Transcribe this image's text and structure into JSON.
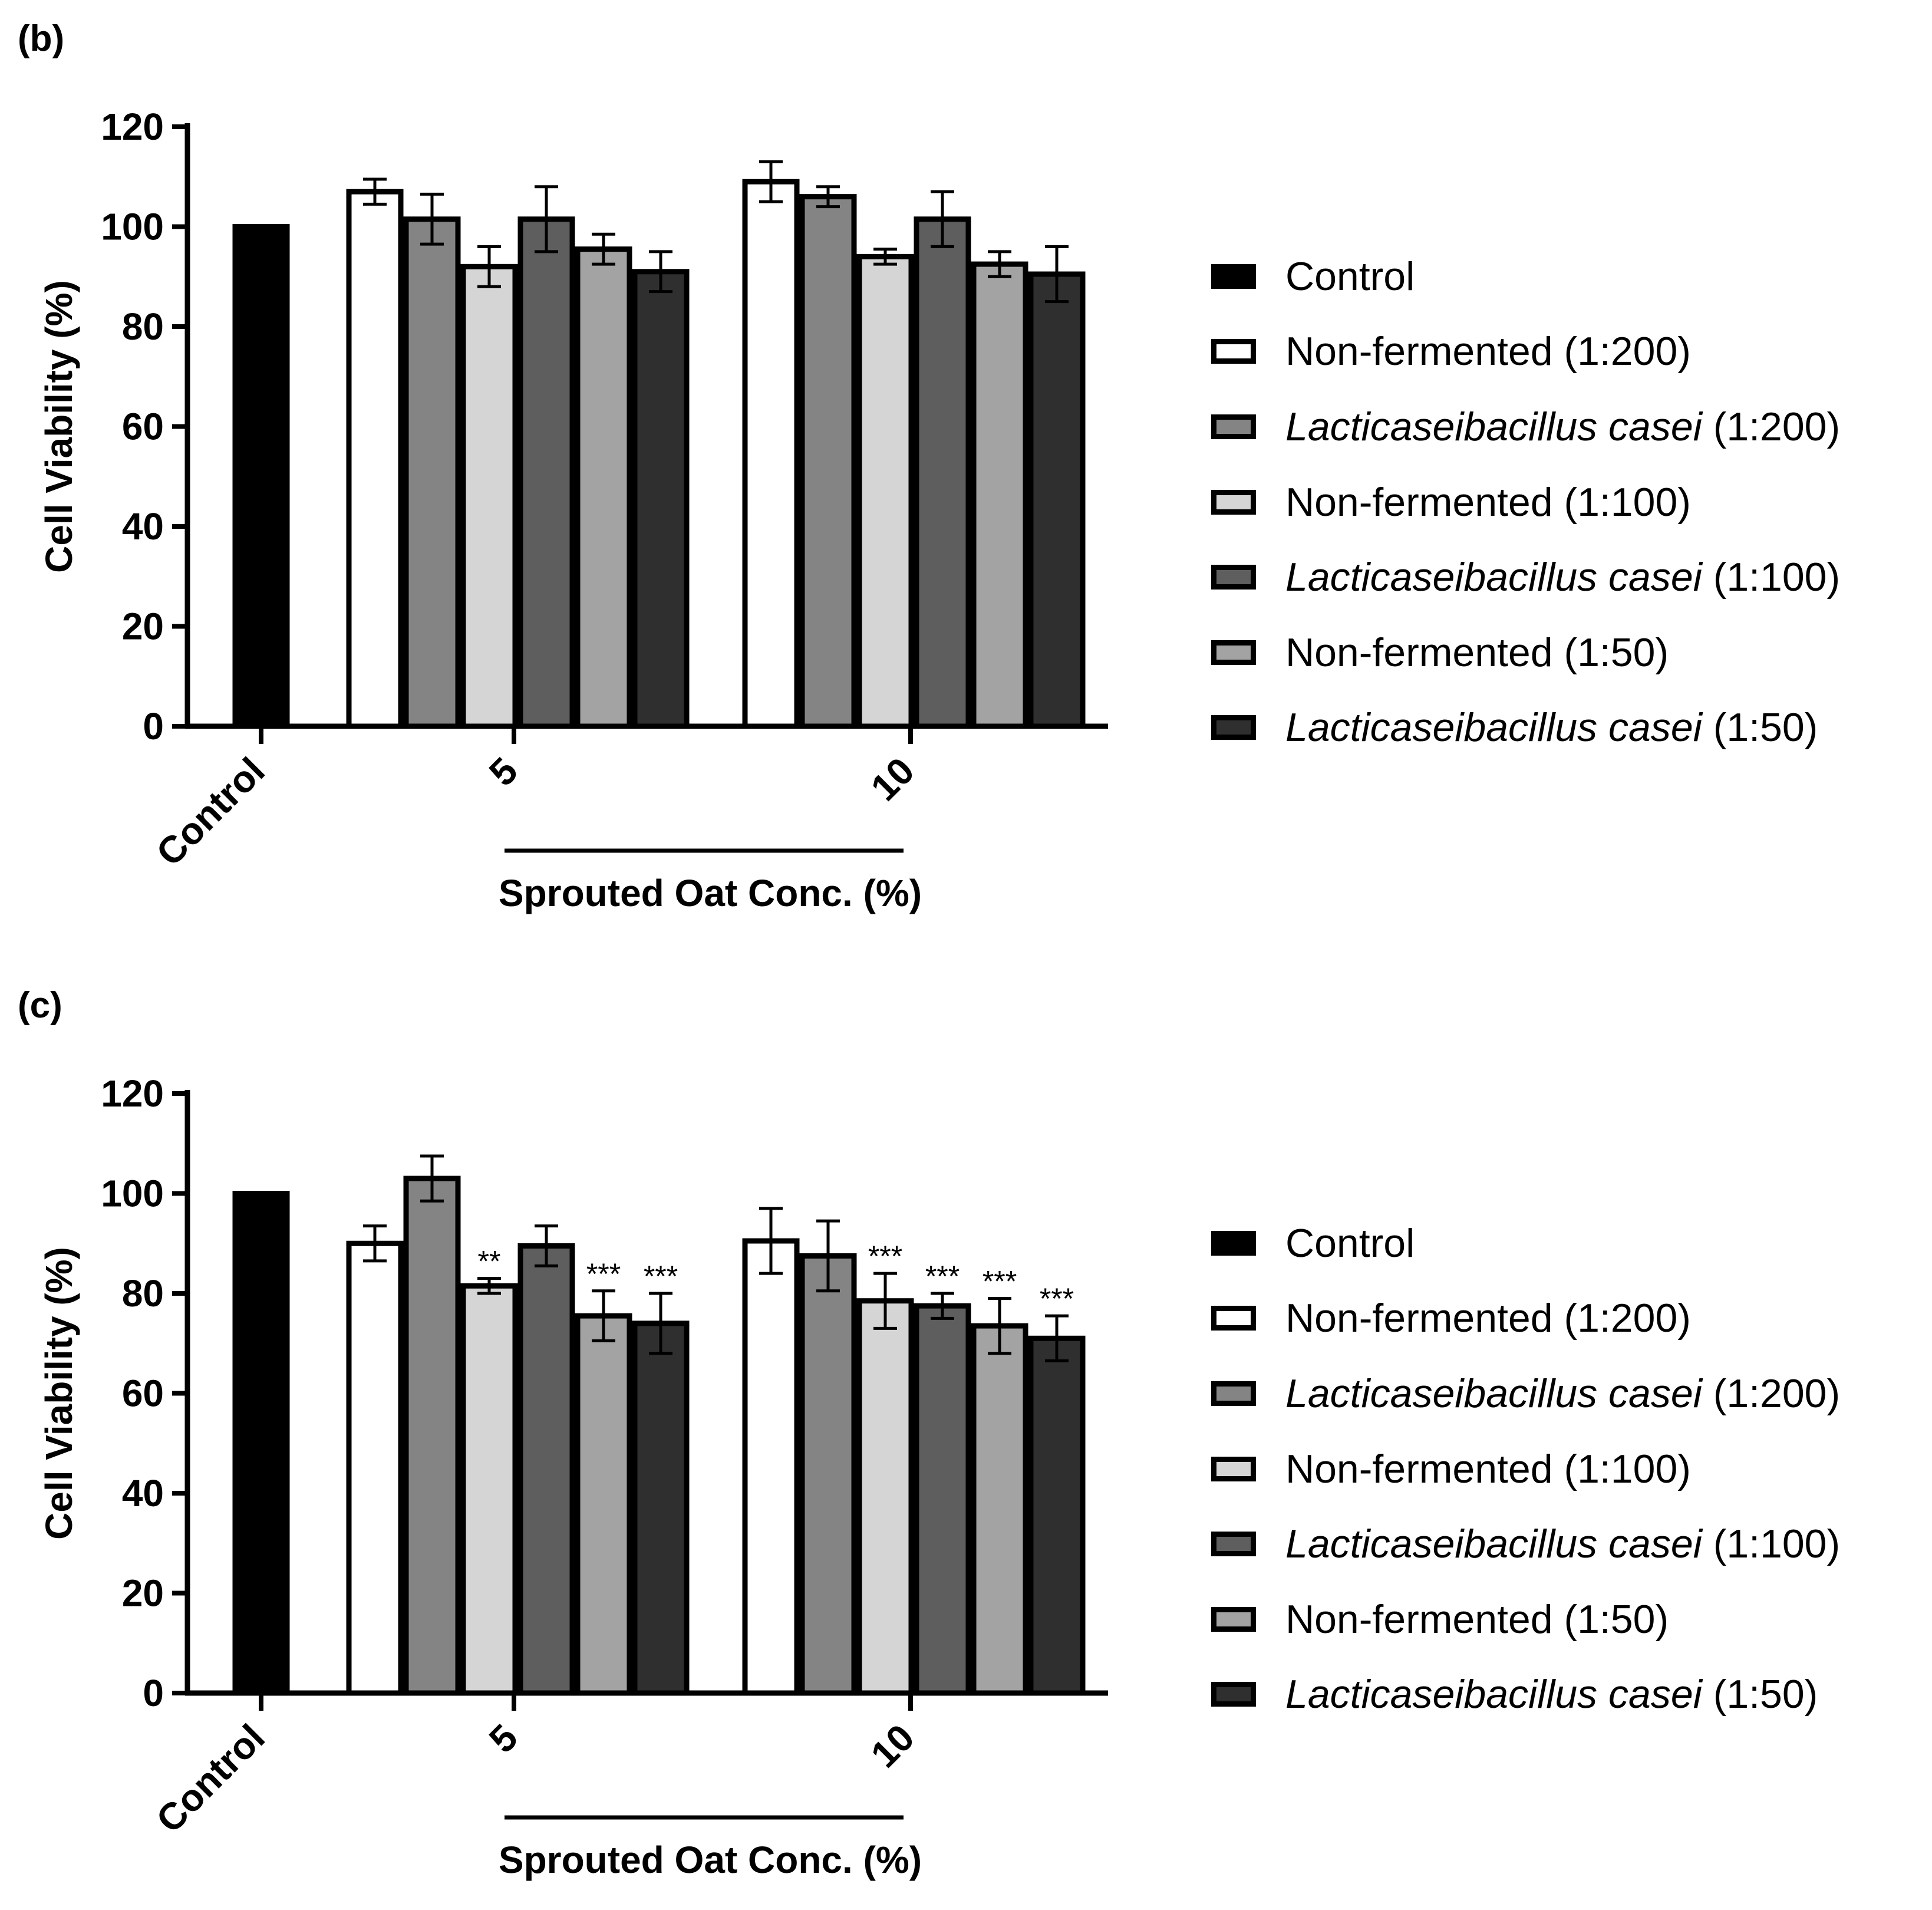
{
  "chart_data": [
    {
      "panel_label": "(b)",
      "type": "bar",
      "ylabel": "Cell Viability (%)",
      "xlabel": "Sprouted Oat Conc. (%)",
      "ylim": [
        0,
        120
      ],
      "yticks": [
        "0",
        "20",
        "40",
        "60",
        "80",
        "100",
        "120"
      ],
      "groups": [
        "Control",
        "5",
        "10"
      ],
      "control": {
        "name": "Control",
        "value": 100
      },
      "series": [
        {
          "name": "Non-fermented (1:200)",
          "values": [
            107,
            109
          ],
          "errors": [
            2.5,
            4.0
          ],
          "sig": [
            "",
            ""
          ]
        },
        {
          "name": "Lacticaseibacillus casei (1:200)",
          "values": [
            101.5,
            106
          ],
          "errors": [
            5.0,
            2.0
          ],
          "sig": [
            "",
            ""
          ]
        },
        {
          "name": "Non-fermented (1:100)",
          "values": [
            92,
            94
          ],
          "errors": [
            4.0,
            1.5
          ],
          "sig": [
            "",
            ""
          ]
        },
        {
          "name": "Lacticaseibacillus casei (1:100)",
          "values": [
            101.5,
            101.5
          ],
          "errors": [
            6.5,
            5.5
          ],
          "sig": [
            "",
            ""
          ]
        },
        {
          "name": "Non-fermented (1:50)",
          "values": [
            95.5,
            92.5
          ],
          "errors": [
            3.0,
            2.5
          ],
          "sig": [
            "",
            ""
          ]
        },
        {
          "name": "Lacticaseibacillus casei (1:50)",
          "values": [
            91,
            90.5
          ],
          "errors": [
            4.0,
            5.5
          ],
          "sig": [
            "",
            ""
          ]
        }
      ]
    },
    {
      "panel_label": "(c)",
      "type": "bar",
      "ylabel": "Cell Viability (%)",
      "xlabel": "Sprouted Oat Conc. (%)",
      "ylim": [
        0,
        120
      ],
      "yticks": [
        "0",
        "20",
        "40",
        "60",
        "80",
        "100",
        "120"
      ],
      "groups": [
        "Control",
        "5",
        "10"
      ],
      "control": {
        "name": "Control",
        "value": 100
      },
      "series": [
        {
          "name": "Non-fermented (1:200)",
          "values": [
            90,
            90.5
          ],
          "errors": [
            3.5,
            6.5
          ],
          "sig": [
            "",
            ""
          ]
        },
        {
          "name": "Lacticaseibacillus casei (1:200)",
          "values": [
            103,
            87.5
          ],
          "errors": [
            4.5,
            7.0
          ],
          "sig": [
            "",
            ""
          ]
        },
        {
          "name": "Non-fermented (1:100)",
          "values": [
            81.5,
            78.5
          ],
          "errors": [
            1.5,
            5.5
          ],
          "sig": [
            "**",
            "***"
          ]
        },
        {
          "name": "Lacticaseibacillus casei (1:100)",
          "values": [
            89.5,
            77.5
          ],
          "errors": [
            4.0,
            2.5
          ],
          "sig": [
            "",
            "***"
          ]
        },
        {
          "name": "Non-fermented (1:50)",
          "values": [
            75.5,
            73.5
          ],
          "errors": [
            5.0,
            5.5
          ],
          "sig": [
            "***",
            "***"
          ]
        },
        {
          "name": "Lacticaseibacillus casei (1:50)",
          "values": [
            74,
            71
          ],
          "errors": [
            6.0,
            4.5
          ],
          "sig": [
            "***",
            "***"
          ]
        }
      ]
    }
  ],
  "legend": [
    {
      "italic": "",
      "text": "Control",
      "color": "#000000"
    },
    {
      "italic": "",
      "text": "Non-fermented (1:200)",
      "color": "#ffffff"
    },
    {
      "italic": "Lacticaseibacillus casei",
      "text": " (1:200)",
      "color": "#848484"
    },
    {
      "italic": "",
      "text": "Non-fermented (1:100)",
      "color": "#d5d5d5"
    },
    {
      "italic": "Lacticaseibacillus casei",
      "text": " (1:100)",
      "color": "#5e5e5e"
    },
    {
      "italic": "",
      "text": "Non-fermented (1:50)",
      "color": "#a3a3a3"
    },
    {
      "italic": "Lacticaseibacillus casei",
      "text": " (1:50)",
      "color": "#2f2f2f"
    }
  ]
}
